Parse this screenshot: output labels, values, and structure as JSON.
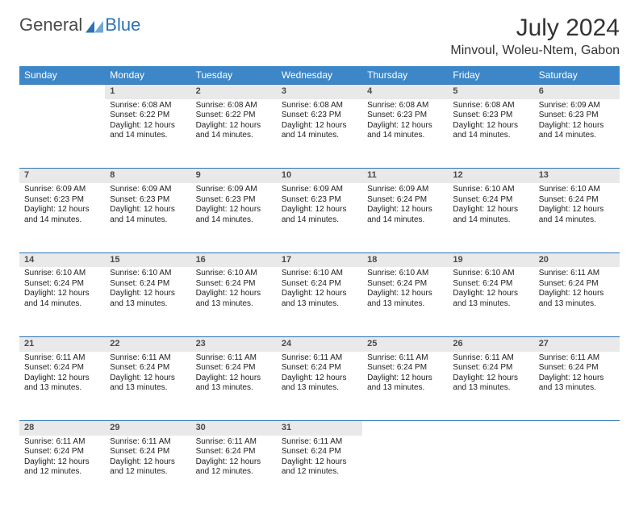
{
  "brand": {
    "word1": "General",
    "word2": "Blue"
  },
  "title": "July 2024",
  "location": "Minvoul, Woleu-Ntem, Gabon",
  "colors": {
    "header_bg": "#3d87c9",
    "header_text": "#ffffff",
    "daynum_bg": "#e9e9e9",
    "row_border": "#2a72b5",
    "body_bg": "#ffffff",
    "text": "#212121"
  },
  "dayNames": [
    "Sunday",
    "Monday",
    "Tuesday",
    "Wednesday",
    "Thursday",
    "Friday",
    "Saturday"
  ],
  "firstWeekday": 1,
  "daysInMonth": 31,
  "days": {
    "1": {
      "sunrise": "6:08 AM",
      "sunset": "6:22 PM",
      "daylight": "12 hours and 14 minutes."
    },
    "2": {
      "sunrise": "6:08 AM",
      "sunset": "6:22 PM",
      "daylight": "12 hours and 14 minutes."
    },
    "3": {
      "sunrise": "6:08 AM",
      "sunset": "6:23 PM",
      "daylight": "12 hours and 14 minutes."
    },
    "4": {
      "sunrise": "6:08 AM",
      "sunset": "6:23 PM",
      "daylight": "12 hours and 14 minutes."
    },
    "5": {
      "sunrise": "6:08 AM",
      "sunset": "6:23 PM",
      "daylight": "12 hours and 14 minutes."
    },
    "6": {
      "sunrise": "6:09 AM",
      "sunset": "6:23 PM",
      "daylight": "12 hours and 14 minutes."
    },
    "7": {
      "sunrise": "6:09 AM",
      "sunset": "6:23 PM",
      "daylight": "12 hours and 14 minutes."
    },
    "8": {
      "sunrise": "6:09 AM",
      "sunset": "6:23 PM",
      "daylight": "12 hours and 14 minutes."
    },
    "9": {
      "sunrise": "6:09 AM",
      "sunset": "6:23 PM",
      "daylight": "12 hours and 14 minutes."
    },
    "10": {
      "sunrise": "6:09 AM",
      "sunset": "6:23 PM",
      "daylight": "12 hours and 14 minutes."
    },
    "11": {
      "sunrise": "6:09 AM",
      "sunset": "6:24 PM",
      "daylight": "12 hours and 14 minutes."
    },
    "12": {
      "sunrise": "6:10 AM",
      "sunset": "6:24 PM",
      "daylight": "12 hours and 14 minutes."
    },
    "13": {
      "sunrise": "6:10 AM",
      "sunset": "6:24 PM",
      "daylight": "12 hours and 14 minutes."
    },
    "14": {
      "sunrise": "6:10 AM",
      "sunset": "6:24 PM",
      "daylight": "12 hours and 14 minutes."
    },
    "15": {
      "sunrise": "6:10 AM",
      "sunset": "6:24 PM",
      "daylight": "12 hours and 13 minutes."
    },
    "16": {
      "sunrise": "6:10 AM",
      "sunset": "6:24 PM",
      "daylight": "12 hours and 13 minutes."
    },
    "17": {
      "sunrise": "6:10 AM",
      "sunset": "6:24 PM",
      "daylight": "12 hours and 13 minutes."
    },
    "18": {
      "sunrise": "6:10 AM",
      "sunset": "6:24 PM",
      "daylight": "12 hours and 13 minutes."
    },
    "19": {
      "sunrise": "6:10 AM",
      "sunset": "6:24 PM",
      "daylight": "12 hours and 13 minutes."
    },
    "20": {
      "sunrise": "6:11 AM",
      "sunset": "6:24 PM",
      "daylight": "12 hours and 13 minutes."
    },
    "21": {
      "sunrise": "6:11 AM",
      "sunset": "6:24 PM",
      "daylight": "12 hours and 13 minutes."
    },
    "22": {
      "sunrise": "6:11 AM",
      "sunset": "6:24 PM",
      "daylight": "12 hours and 13 minutes."
    },
    "23": {
      "sunrise": "6:11 AM",
      "sunset": "6:24 PM",
      "daylight": "12 hours and 13 minutes."
    },
    "24": {
      "sunrise": "6:11 AM",
      "sunset": "6:24 PM",
      "daylight": "12 hours and 13 minutes."
    },
    "25": {
      "sunrise": "6:11 AM",
      "sunset": "6:24 PM",
      "daylight": "12 hours and 13 minutes."
    },
    "26": {
      "sunrise": "6:11 AM",
      "sunset": "6:24 PM",
      "daylight": "12 hours and 13 minutes."
    },
    "27": {
      "sunrise": "6:11 AM",
      "sunset": "6:24 PM",
      "daylight": "12 hours and 13 minutes."
    },
    "28": {
      "sunrise": "6:11 AM",
      "sunset": "6:24 PM",
      "daylight": "12 hours and 12 minutes."
    },
    "29": {
      "sunrise": "6:11 AM",
      "sunset": "6:24 PM",
      "daylight": "12 hours and 12 minutes."
    },
    "30": {
      "sunrise": "6:11 AM",
      "sunset": "6:24 PM",
      "daylight": "12 hours and 12 minutes."
    },
    "31": {
      "sunrise": "6:11 AM",
      "sunset": "6:24 PM",
      "daylight": "12 hours and 12 minutes."
    }
  },
  "labels": {
    "sunrise": "Sunrise:",
    "sunset": "Sunset:",
    "daylight": "Daylight:"
  }
}
